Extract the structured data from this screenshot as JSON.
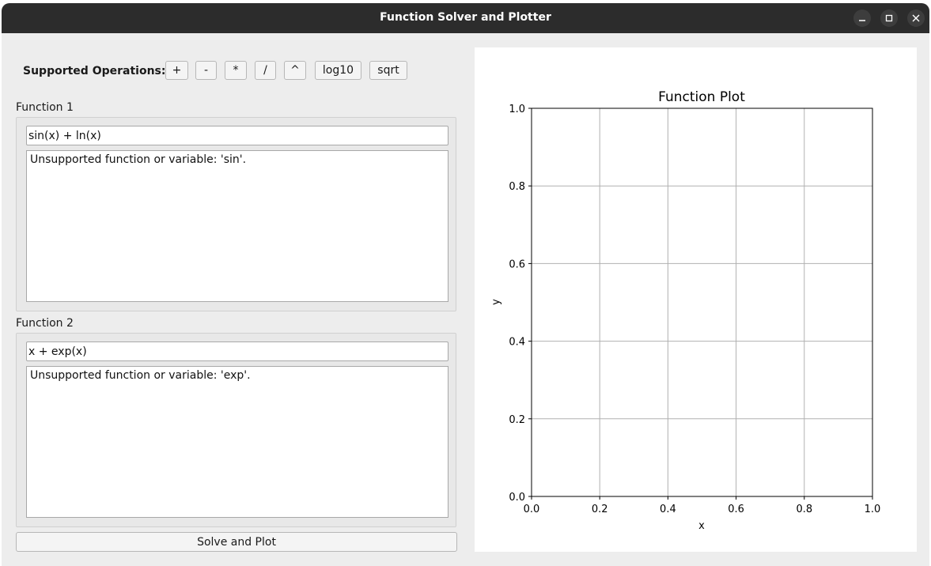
{
  "window": {
    "title": "Function Solver and Plotter"
  },
  "toolbar": {
    "ops_label": "Supported Operations:",
    "ops": [
      "+",
      "-",
      "*",
      "/",
      "^",
      "log10",
      "sqrt"
    ]
  },
  "function1": {
    "label": "Function 1",
    "input_value": "sin(x) + ln(x)",
    "output": "Unsupported function or variable: 'sin'."
  },
  "function2": {
    "label": "Function 2",
    "input_value": "x + exp(x)",
    "output": "Unsupported function or variable: 'exp'."
  },
  "actions": {
    "solve_label": "Solve and Plot"
  },
  "chart_data": {
    "type": "line",
    "title": "Function Plot",
    "xlabel": "x",
    "ylabel": "y",
    "xlim": [
      0.0,
      1.0
    ],
    "ylim": [
      0.0,
      1.0
    ],
    "xticks": [
      "0.0",
      "0.2",
      "0.4",
      "0.6",
      "0.8",
      "1.0"
    ],
    "yticks": [
      "0.0",
      "0.2",
      "0.4",
      "0.6",
      "0.8",
      "1.0"
    ],
    "grid": true,
    "series": []
  },
  "colors": {
    "titlebar": "#2c2c2c",
    "window_bg": "#ededed",
    "grid": "#b0b0b0"
  },
  "icons": {
    "minimize": "minimize-icon",
    "maximize": "maximize-icon",
    "close": "close-icon"
  }
}
